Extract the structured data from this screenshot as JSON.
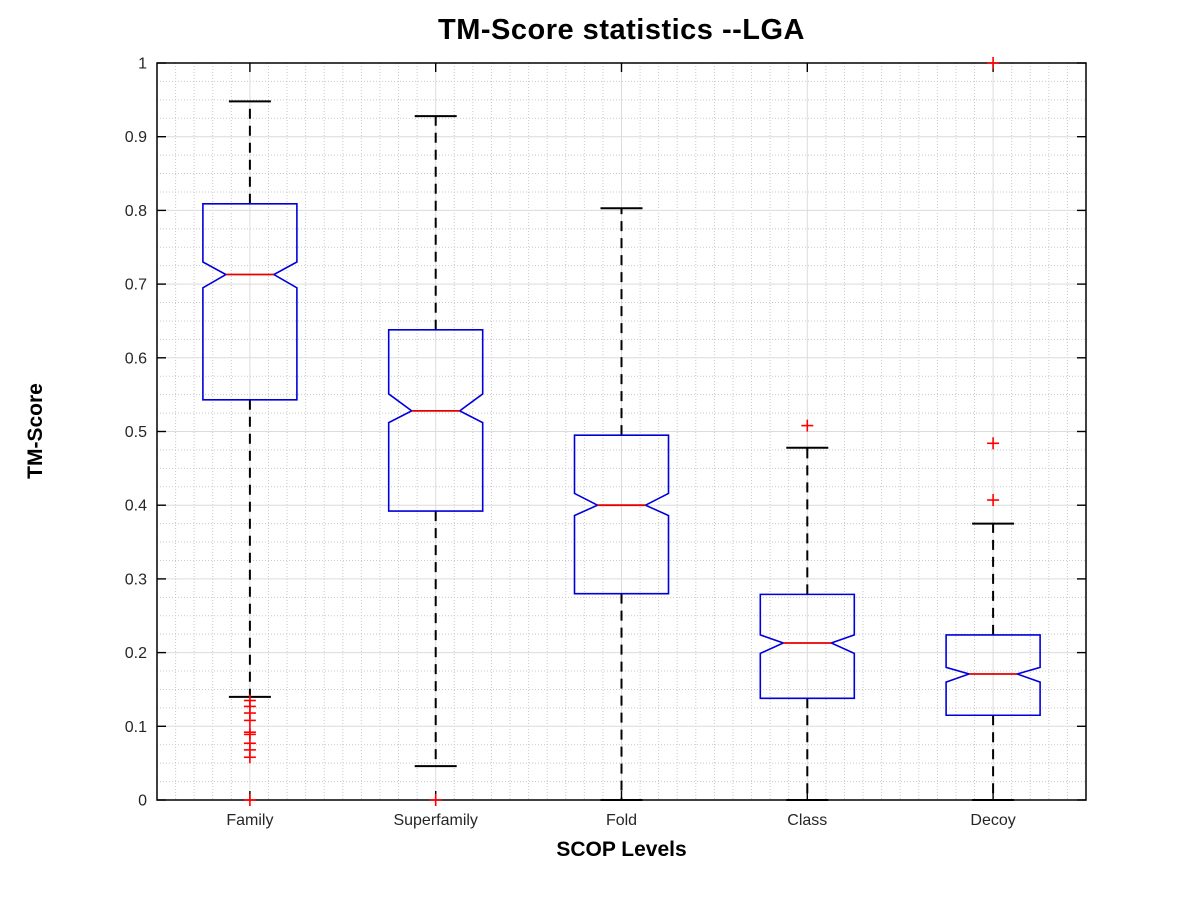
{
  "chart_data": {
    "type": "boxplot",
    "title": "TM-Score statistics --LGA",
    "xlabel": "SCOP Levels",
    "ylabel": "TM-Score",
    "ylim": [
      0,
      1
    ],
    "yticks": [
      0,
      0.1,
      0.2,
      0.3,
      0.4,
      0.5,
      0.6,
      0.7,
      0.8,
      0.9,
      1
    ],
    "ytick_labels": [
      "0",
      "0.1",
      "0.2",
      "0.3",
      "0.4",
      "0.5",
      "0.6",
      "0.7",
      "0.8",
      "0.9",
      "1"
    ],
    "categories": [
      "Family",
      "Superfamily",
      "Fold",
      "Class",
      "Decoy"
    ],
    "grid": {
      "major": true,
      "minor": true,
      "minor_style": "dotted",
      "y_minor_step": 0.025,
      "x_minor_per_category": 10
    },
    "notched": true,
    "colors": {
      "box": "#0000dd",
      "median": "#e60000",
      "outlier": "#ff0000",
      "whisker": "#000000",
      "axis": "#000000",
      "grid_major": "#dcdcdc",
      "grid_minor": "#c9c9c9",
      "tick_text": "#262626",
      "title_text": "#000000"
    },
    "series": [
      {
        "label": "Family",
        "whisker_low": 0.14,
        "q1": 0.543,
        "median": 0.713,
        "q3": 0.809,
        "whisker_high": 0.948,
        "notch_low": 0.695,
        "notch_high": 0.73,
        "outliers": [
          0.135,
          0.127,
          0.118,
          0.108,
          0.092,
          0.089,
          0.077,
          0.068,
          0.058,
          0.0
        ]
      },
      {
        "label": "Superfamily",
        "whisker_low": 0.046,
        "q1": 0.392,
        "median": 0.528,
        "q3": 0.638,
        "whisker_high": 0.928,
        "notch_low": 0.512,
        "notch_high": 0.551,
        "outliers": [
          0.0
        ]
      },
      {
        "label": "Fold",
        "whisker_low": 0.0,
        "q1": 0.28,
        "median": 0.4,
        "q3": 0.495,
        "whisker_high": 0.803,
        "notch_low": 0.386,
        "notch_high": 0.416,
        "outliers": []
      },
      {
        "label": "Class",
        "whisker_low": 0.0,
        "q1": 0.138,
        "median": 0.213,
        "q3": 0.279,
        "whisker_high": 0.478,
        "notch_low": 0.199,
        "notch_high": 0.224,
        "outliers": [
          0.508
        ]
      },
      {
        "label": "Decoy",
        "whisker_low": 0.0,
        "q1": 0.115,
        "median": 0.171,
        "q3": 0.224,
        "whisker_high": 0.375,
        "notch_low": 0.16,
        "notch_high": 0.18,
        "outliers": [
          1.0,
          0.484,
          0.407
        ]
      }
    ]
  }
}
